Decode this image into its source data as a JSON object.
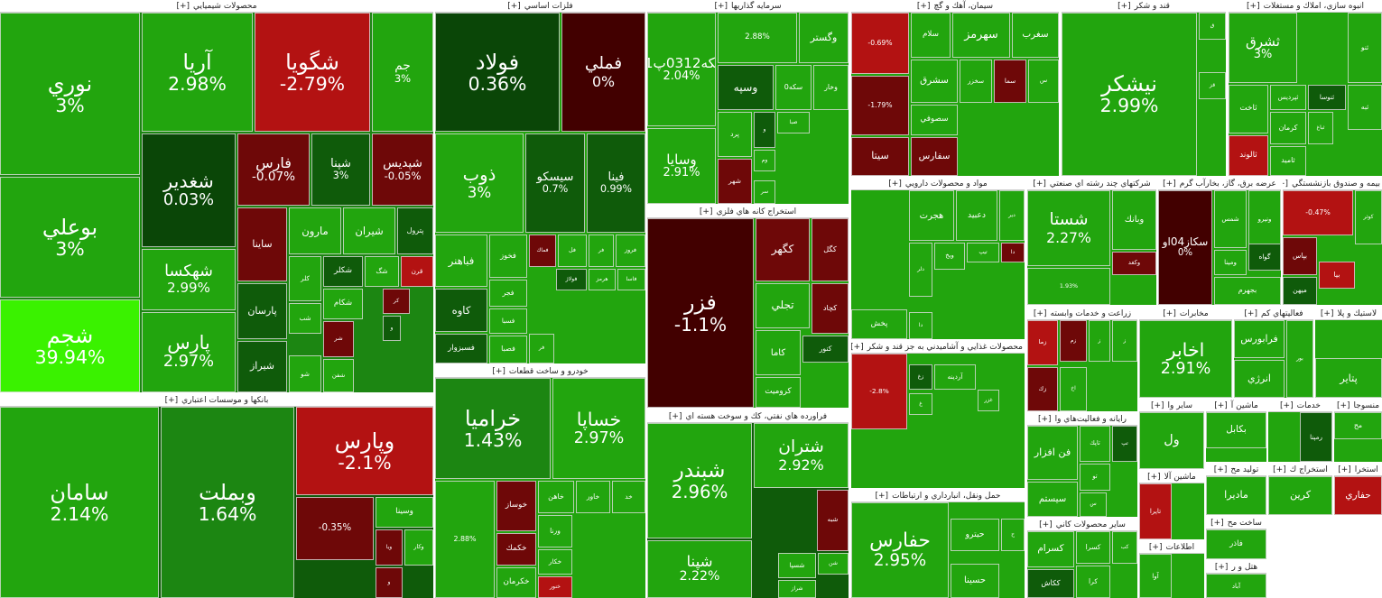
{
  "sectors": [
    {
      "title": "محصولات شيميايي",
      "toggle": "[+]",
      "tiles": [
        {
          "label": "نوري",
          "change": "3%"
        },
        {
          "label": "بوعلي",
          "change": "3%"
        },
        {
          "label": "شجم",
          "change": "39.94%"
        },
        {
          "label": "آريا",
          "change": "2.98%"
        },
        {
          "label": "شگويا",
          "change": "-2.79%"
        },
        {
          "label": "جم",
          "change": "3%"
        },
        {
          "label": "شغدير",
          "change": "0.03%"
        },
        {
          "label": "فارس",
          "change": "-0.07%"
        },
        {
          "label": "شپنا",
          "change": "3%"
        },
        {
          "label": "شپديس",
          "change": "-0.05%"
        },
        {
          "label": "شهكسا",
          "change": "2.99%"
        },
        {
          "label": "پارس",
          "change": "2.97%"
        },
        {
          "label": "ساينا"
        },
        {
          "label": "مارون"
        },
        {
          "label": "شيران"
        },
        {
          "label": "پترول"
        },
        {
          "label": "كلر"
        },
        {
          "label": "شكلر"
        },
        {
          "label": "شگ"
        },
        {
          "label": "قرن"
        },
        {
          "label": "پارسان"
        },
        {
          "label": "شيراز"
        },
        {
          "label": "شكام"
        },
        {
          "label": "كر"
        },
        {
          "label": "شب"
        },
        {
          "label": "شر"
        },
        {
          "label": "و"
        },
        {
          "label": "شو"
        },
        {
          "label": "شفن"
        }
      ]
    },
    {
      "title": "فلزات اساسي",
      "toggle": "[+]",
      "tiles": [
        {
          "label": "فولاد",
          "change": "0.36%"
        },
        {
          "label": "فملي",
          "change": "0%"
        },
        {
          "label": "ذوب",
          "change": "3%"
        },
        {
          "label": "سيسكو",
          "change": "0.7%"
        },
        {
          "label": "فينا",
          "change": "0.99%"
        },
        {
          "label": "فباهنر"
        },
        {
          "label": "فخوز"
        },
        {
          "label": "فماك"
        },
        {
          "label": "فل"
        },
        {
          "label": "فر"
        },
        {
          "label": "فروز"
        },
        {
          "label": "كاوه"
        },
        {
          "label": "فجر"
        },
        {
          "label": "فولاژ"
        },
        {
          "label": "هرمز"
        },
        {
          "label": "فاسا"
        },
        {
          "label": "فسبزوار"
        },
        {
          "label": "فسبا"
        },
        {
          "label": "فصبا"
        },
        {
          "label": "فر"
        }
      ]
    },
    {
      "title": "سرمايه گذاريها",
      "toggle": "[+]",
      "tiles": [
        {
          "label": "سكه0312پ01",
          "change": "2.04%"
        },
        {
          "change": "2.88%"
        },
        {
          "label": "وگستر"
        },
        {
          "label": "وسپه"
        },
        {
          "label": "سكه0"
        },
        {
          "label": "وخار"
        },
        {
          "label": "پرد"
        },
        {
          "label": "وسايا",
          "change": "2.91%"
        },
        {
          "label": "و"
        },
        {
          "label": "صبا"
        },
        {
          "label": "شهر"
        },
        {
          "label": "وم"
        },
        {
          "label": "سر"
        }
      ]
    },
    {
      "title": "سيمان، آهك و گچ",
      "toggle": "[+]",
      "tiles": [
        {
          "change": "-0.69%"
        },
        {
          "label": "سلام"
        },
        {
          "label": "سهرمز"
        },
        {
          "label": "سغرب"
        },
        {
          "change": "-1.79%"
        },
        {
          "label": "سشرق"
        },
        {
          "label": "سخزر"
        },
        {
          "label": "سما"
        },
        {
          "label": "س"
        },
        {
          "label": "سصوفي"
        },
        {
          "label": "سيتا"
        },
        {
          "label": "سفارس"
        }
      ]
    },
    {
      "title": "قند و شكر",
      "toggle": "[+]",
      "tiles": [
        {
          "label": "نيشكر",
          "change": "2.99%"
        },
        {
          "label": "ق"
        },
        {
          "label": "قز"
        }
      ]
    },
    {
      "title": "انبوه سازي، املاك و مستغلات",
      "toggle": "[+]",
      "tiles": [
        {
          "label": "ثشرق",
          "change": "3%"
        },
        {
          "label": "ثنو"
        },
        {
          "label": "ثاخت"
        },
        {
          "label": "ثپرديس"
        },
        {
          "label": "ثنوسا"
        },
        {
          "label": "ثبه"
        },
        {
          "label": "ثالوند"
        },
        {
          "label": "كرمان"
        },
        {
          "label": "ثباغ"
        },
        {
          "label": "ثاميد"
        }
      ]
    },
    {
      "title": "بانكها و موسسات اعتباري",
      "toggle": "[+]",
      "tiles": [
        {
          "label": "سامان",
          "change": "2.14%"
        },
        {
          "label": "وبملت",
          "change": "1.64%"
        },
        {
          "label": "وپارس",
          "change": "-2.1%"
        },
        {
          "change": "-0.35%"
        },
        {
          "label": "وسينا"
        },
        {
          "label": "ويا"
        },
        {
          "label": "وكار"
        },
        {
          "label": "و"
        }
      ]
    },
    {
      "title": "خودرو و ساخت قطعات",
      "toggle": "[+]",
      "tiles": [
        {
          "label": "خراميا",
          "change": "1.43%"
        },
        {
          "label": "خساپا",
          "change": "2.97%"
        },
        {
          "change": "2.88%"
        },
        {
          "label": "خوساز"
        },
        {
          "label": "خاهن"
        },
        {
          "label": "خاور"
        },
        {
          "label": "خد"
        },
        {
          "label": "خكمك"
        },
        {
          "label": "ورنا"
        },
        {
          "label": "خكار"
        },
        {
          "label": "خكرمان"
        },
        {
          "label": "خنور"
        }
      ]
    },
    {
      "title": "استخراج كانه هاي فلزي",
      "toggle": "[+]",
      "tiles": [
        {
          "label": "فزر",
          "change": "-1.1%"
        },
        {
          "label": "كگهر"
        },
        {
          "label": "كگل"
        },
        {
          "label": "تجلي"
        },
        {
          "label": "كچاد"
        },
        {
          "label": "كاما"
        },
        {
          "label": "كنور"
        },
        {
          "label": "كروميت"
        }
      ]
    },
    {
      "title": "فراورده هاي نفتي، كك و سوخت هسته اي",
      "toggle": "[+]",
      "tiles": [
        {
          "label": "شبندر",
          "change": "2.96%"
        },
        {
          "label": "شپنا",
          "change": "2.22%"
        },
        {
          "label": "شتران",
          "change": "2.92%"
        },
        {
          "label": "شبه"
        },
        {
          "label": "شسپا"
        },
        {
          "label": "شن"
        },
        {
          "label": "شراز"
        }
      ]
    },
    {
      "title": "مواد و محصولات دارويي",
      "toggle": "[+]",
      "tiles": [
        {
          "label": "هجرت"
        },
        {
          "label": "دعبيد"
        },
        {
          "label": "دير"
        },
        {
          "label": "دلر"
        },
        {
          "label": "ويخ"
        },
        {
          "label": "تيپ"
        },
        {
          "label": "دا"
        },
        {
          "label": "پخش"
        },
        {
          "label": "دا"
        }
      ]
    },
    {
      "title": "محصولات غذايي و آشاميدني به جز قند و شكر",
      "toggle": "[+]",
      "tiles": [
        {
          "change": "-2.8%"
        },
        {
          "label": "آردينه"
        },
        {
          "label": "زغ"
        },
        {
          "label": "غزر"
        },
        {
          "label": "غ"
        }
      ]
    },
    {
      "title": "حمل ونقل، انبارداري و ارتباطات",
      "toggle": "[+]",
      "tiles": [
        {
          "label": "حفارس",
          "change": "2.95%"
        },
        {
          "label": "حيترو"
        },
        {
          "label": "حسينا"
        },
        {
          "label": "ح"
        }
      ]
    },
    {
      "title": "شركتهاي چند رشته اي صنعتي",
      "toggle": "[+]",
      "tiles": [
        {
          "label": "شستا",
          "change": "2.27%"
        },
        {
          "label": "وبانك"
        },
        {
          "label": "وكغد"
        },
        {
          "change": "1.93%"
        }
      ]
    },
    {
      "title": "عرضه برق، گاز، بخارآب گرم",
      "toggle": "[+]",
      "tiles": [
        {
          "label": "سكاز04او",
          "change": "0%"
        },
        {
          "label": "شمس"
        },
        {
          "label": "ونيرو"
        },
        {
          "label": "ومينا"
        },
        {
          "label": "گواه"
        },
        {
          "label": "بجهرم"
        }
      ]
    },
    {
      "title": "بيمه و صندوق بازنشستگي",
      "toggle": "[+]",
      "tiles": [
        {
          "change": "-0.47%"
        },
        {
          "label": "كوثر"
        },
        {
          "label": "بپاس"
        },
        {
          "label": "بيا"
        },
        {
          "label": "ميهن"
        }
      ]
    },
    {
      "title": "زراعت و خدمات وابسته",
      "toggle": "[+]",
      "tiles": [
        {
          "label": "زما"
        },
        {
          "label": "زم"
        },
        {
          "label": "ز"
        },
        {
          "label": "ز"
        },
        {
          "label": "زك"
        },
        {
          "label": "اخ"
        }
      ]
    },
    {
      "title": "مخابرات",
      "toggle": "[+]",
      "tiles": [
        {
          "label": "اخابر",
          "change": "2.91%"
        }
      ]
    },
    {
      "title": "فعاليتهاي كم",
      "toggle": "[+]",
      "tiles": [
        {
          "label": "فرابورس"
        },
        {
          "label": "انرژي"
        },
        {
          "label": "بور"
        }
      ]
    },
    {
      "title": "لاستيك و پلا",
      "toggle": "[+]",
      "tiles": [
        {
          "label": "پتاير"
        }
      ]
    },
    {
      "title": "رايانه و فعاليت‌هاي وا",
      "toggle": "[+]",
      "tiles": [
        {
          "label": "فن افزار"
        },
        {
          "label": "تاپك"
        },
        {
          "label": "تپ"
        },
        {
          "label": "تو"
        },
        {
          "label": "سيستم"
        },
        {
          "label": "س"
        }
      ]
    },
    {
      "title": "ساير محصولات كاني",
      "toggle": "[+]",
      "tiles": [
        {
          "label": "كسرام"
        },
        {
          "label": "كسرا"
        },
        {
          "label": "كب"
        },
        {
          "label": "ككاش"
        },
        {
          "label": "كرا"
        }
      ]
    },
    {
      "title": "ساير وا",
      "toggle": "[+]",
      "tiles": [
        {
          "label": "ول"
        }
      ]
    },
    {
      "title": "ماشين آلا",
      "toggle": "[+]",
      "tiles": [
        {
          "label": "تايرا"
        }
      ]
    },
    {
      "title": "اطلاعات",
      "toggle": "[+]",
      "tiles": [
        {
          "label": "آوا"
        }
      ]
    },
    {
      "title": "ماشين آ",
      "toggle": "[+]",
      "tiles": [
        {
          "label": "بكابل"
        }
      ]
    },
    {
      "title": "خدمات",
      "toggle": "[+]",
      "tiles": [
        {
          "label": "رمپنا"
        }
      ]
    },
    {
      "title": "منسوجا",
      "toggle": "[+]",
      "tiles": [
        {
          "label": "مح"
        }
      ]
    },
    {
      "title": "توليد مح",
      "toggle": "[+]",
      "tiles": [
        {
          "label": "ماديرا"
        }
      ]
    },
    {
      "title": "استخراج ك",
      "toggle": "[+]",
      "tiles": [
        {
          "label": "كرين"
        }
      ]
    },
    {
      "title": "استخرا",
      "toggle": "[+]",
      "tiles": [
        {
          "label": "حفاري"
        }
      ]
    },
    {
      "title": "ساخت مح",
      "toggle": "[+]",
      "tiles": [
        {
          "label": "فاذر"
        }
      ]
    },
    {
      "title": "هتل و ر",
      "toggle": "[+]",
      "tiles": [
        {
          "label": "آباد"
        }
      ]
    }
  ]
}
